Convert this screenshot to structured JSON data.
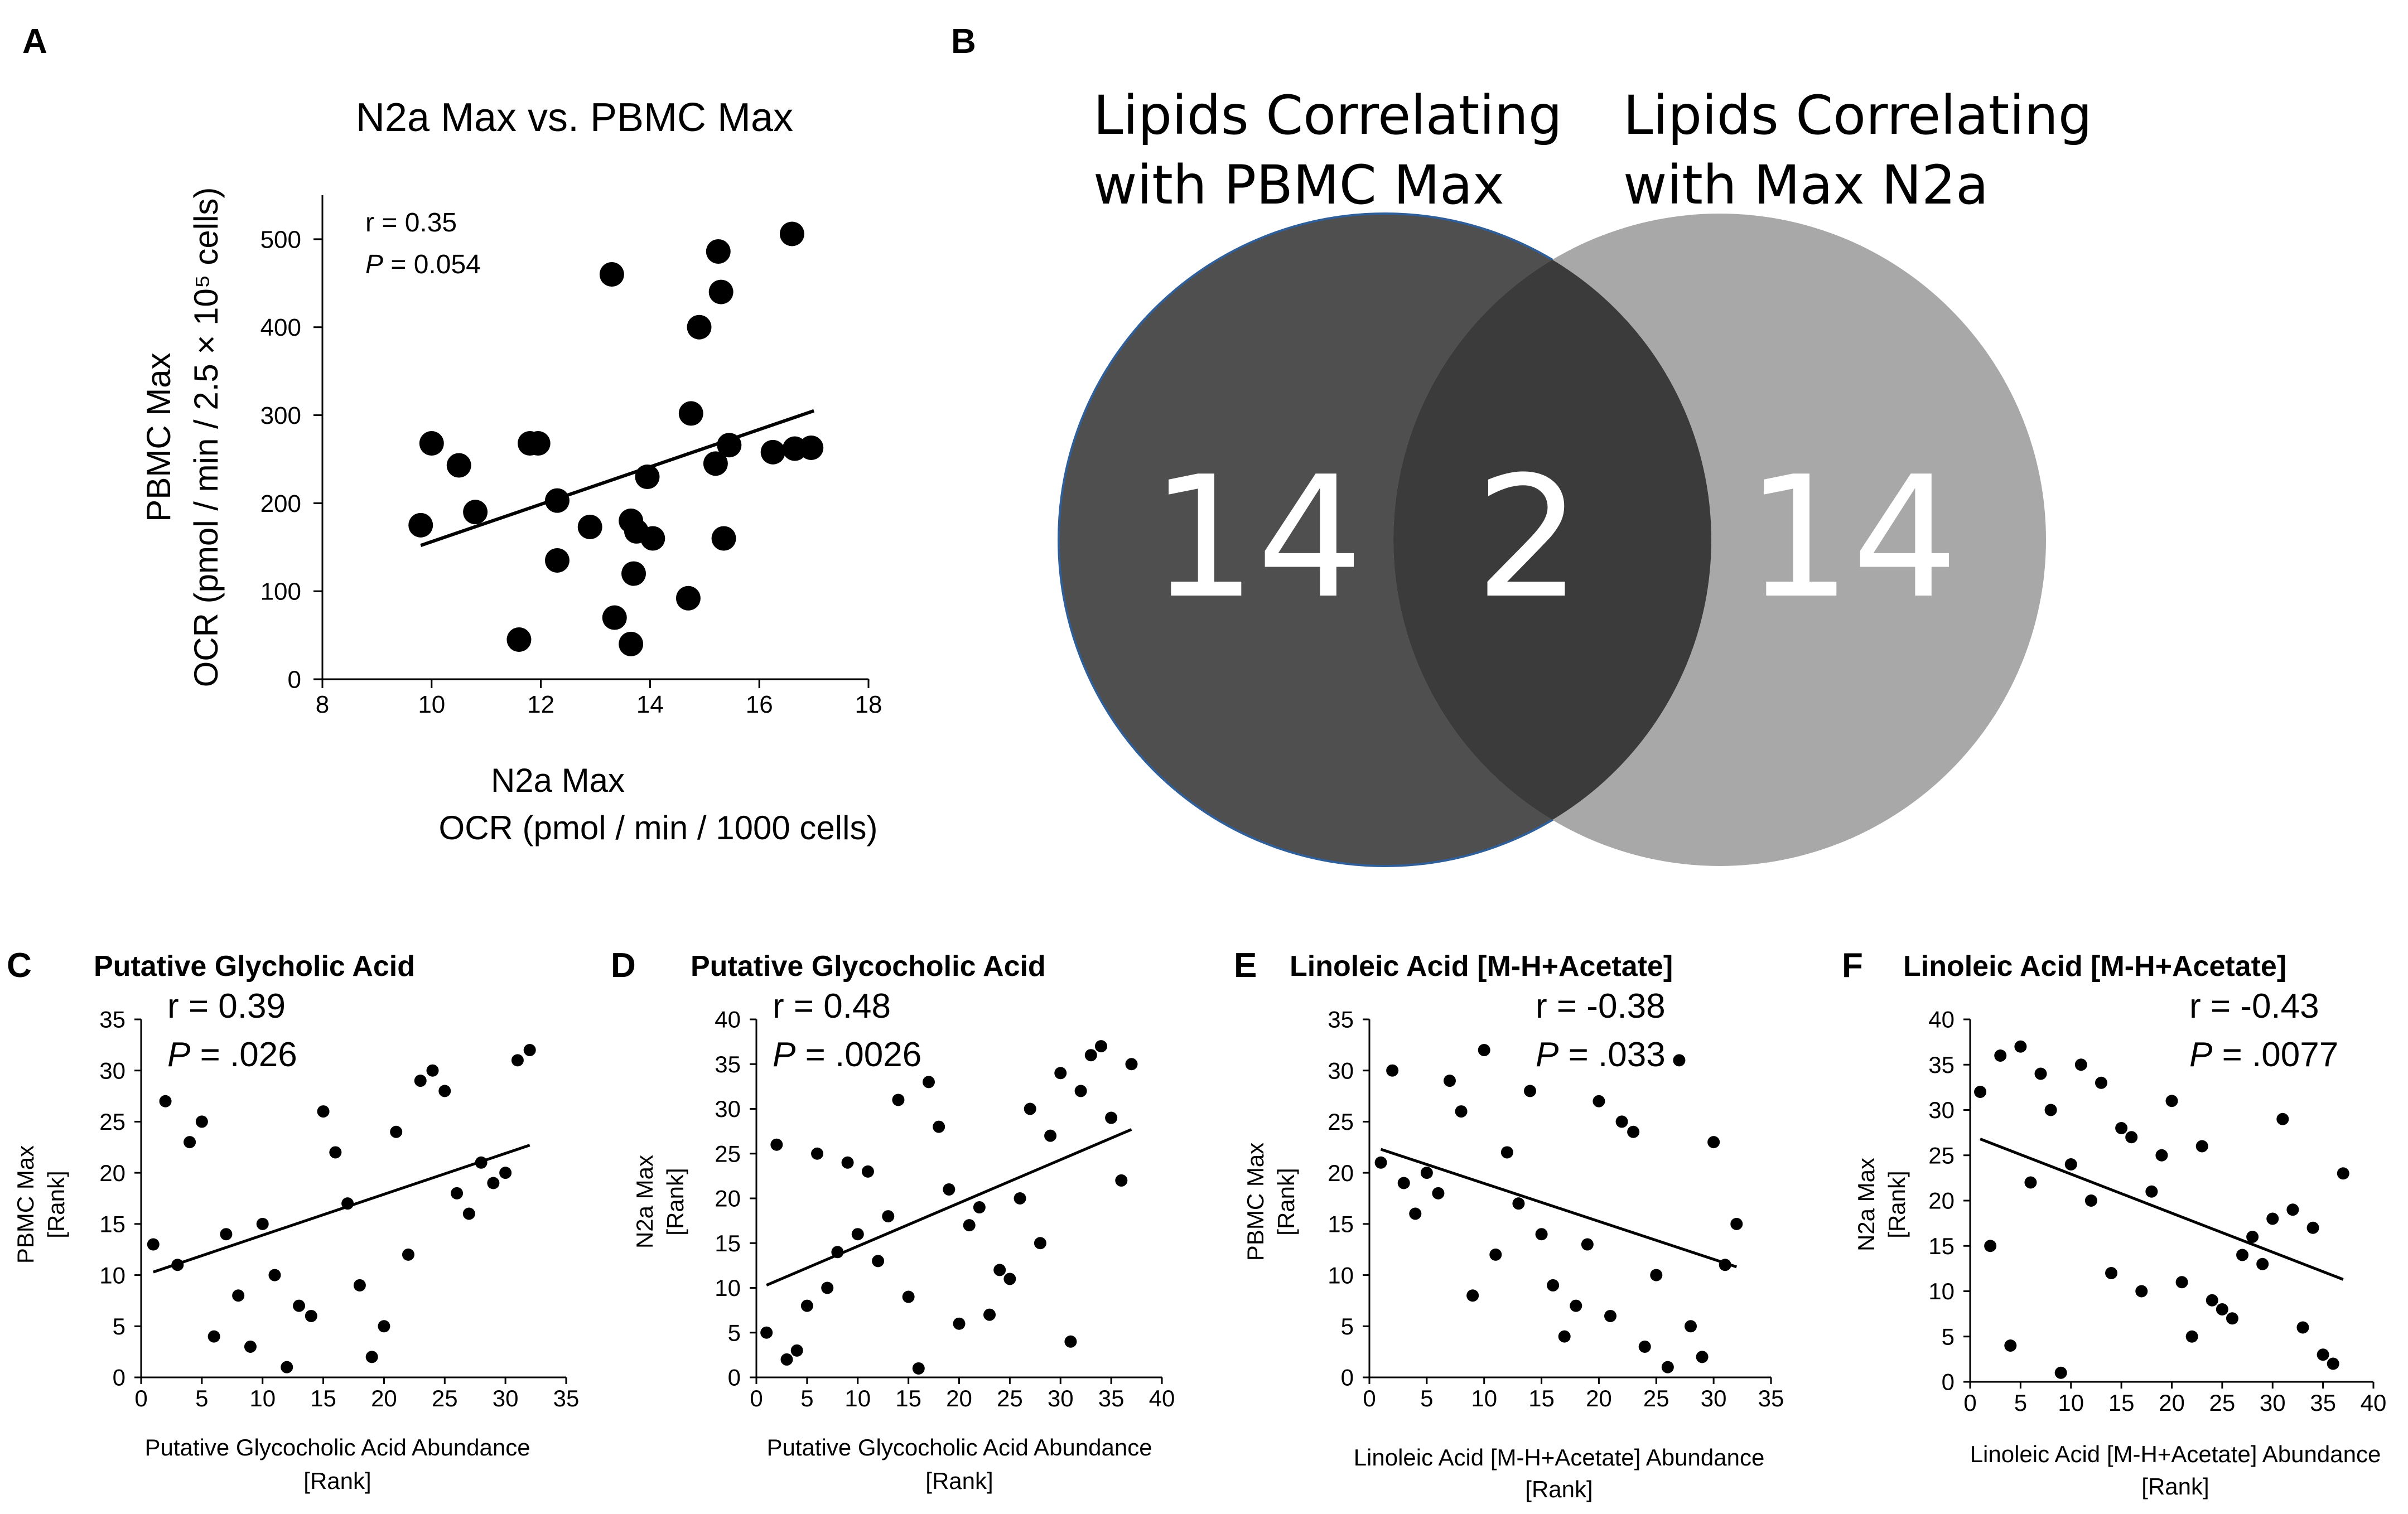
{
  "panel_labels": [
    "A",
    "B",
    "C",
    "D",
    "E",
    "F"
  ],
  "venn": {
    "left_title_line1": "Lipids Correlating",
    "left_title_line2": "with PBMC Max",
    "right_title_line1": "Lipids Correlating",
    "right_title_line2": "with Max N2a",
    "left_only": "14",
    "overlap": "2",
    "right_only": "14",
    "colors": {
      "left": "#4f4f4f",
      "right": "#a8a8a8",
      "overlap": "#3b3b3b",
      "left_edge": "#2f5f9a"
    }
  },
  "chart_data": [
    {
      "id": "A",
      "type": "scatter",
      "title": "N2a Max vs. PBMC Max",
      "xlabel": "N2a Max",
      "xlabel2": "OCR (pmol / min / 1000 cells)",
      "ylabel": "PBMC Max",
      "ylabel2": "OCR (pmol / min / 2.5 × 10⁵ cells)",
      "xlim": [
        8,
        18
      ],
      "ylim": [
        0,
        550
      ],
      "xticks": [
        8,
        10,
        12,
        14,
        16,
        18
      ],
      "yticks": [
        0,
        100,
        200,
        300,
        400,
        500
      ],
      "r_text": "r = 0.35",
      "p_label": "P",
      "p_text": " = 0.054",
      "trendline": [
        [
          9.8,
          152
        ],
        [
          17,
          305
        ]
      ],
      "points": [
        [
          9.8,
          175
        ],
        [
          10.0,
          268
        ],
        [
          10.5,
          243
        ],
        [
          10.8,
          190
        ],
        [
          11.6,
          45
        ],
        [
          11.8,
          268
        ],
        [
          11.95,
          268
        ],
        [
          12.3,
          203
        ],
        [
          12.3,
          135
        ],
        [
          12.9,
          173
        ],
        [
          13.3,
          460
        ],
        [
          13.35,
          70
        ],
        [
          13.65,
          40
        ],
        [
          13.65,
          180
        ],
        [
          13.7,
          120
        ],
        [
          13.75,
          168
        ],
        [
          13.95,
          230
        ],
        [
          14.05,
          160
        ],
        [
          14.7,
          92
        ],
        [
          14.75,
          302
        ],
        [
          14.9,
          400
        ],
        [
          15.2,
          245
        ],
        [
          15.25,
          486
        ],
        [
          15.3,
          440
        ],
        [
          15.35,
          160
        ],
        [
          15.45,
          266
        ],
        [
          16.25,
          258
        ],
        [
          16.6,
          506
        ],
        [
          16.65,
          262
        ],
        [
          16.95,
          263
        ]
      ]
    },
    {
      "id": "C",
      "type": "scatter",
      "title": "Putative Glycholic Acid",
      "xlabel": "Putative Glycocholic Acid Abundance",
      "xlabel2": "[Rank]",
      "ylabel": "PBMC Max",
      "ylabel2": "[Rank]",
      "xlim": [
        0,
        35
      ],
      "ylim": [
        0,
        35
      ],
      "xticks": [
        0,
        5,
        10,
        15,
        20,
        25,
        30,
        35
      ],
      "yticks": [
        0,
        5,
        10,
        15,
        20,
        25,
        30,
        35
      ],
      "r_text": "r = 0.39",
      "p_label": "P",
      "p_text": " = .026",
      "trendline": [
        [
          1,
          10.3
        ],
        [
          32,
          22.7
        ]
      ],
      "points": [
        [
          1,
          13
        ],
        [
          2,
          27
        ],
        [
          3,
          11
        ],
        [
          4,
          23
        ],
        [
          5,
          25
        ],
        [
          6,
          4
        ],
        [
          7,
          14
        ],
        [
          8,
          8
        ],
        [
          9,
          3
        ],
        [
          10,
          15
        ],
        [
          11,
          10
        ],
        [
          12,
          1
        ],
        [
          13,
          7
        ],
        [
          14,
          6
        ],
        [
          15,
          26
        ],
        [
          16,
          22
        ],
        [
          17,
          17
        ],
        [
          18,
          9
        ],
        [
          19,
          2
        ],
        [
          20,
          5
        ],
        [
          21,
          24
        ],
        [
          22,
          12
        ],
        [
          23,
          29
        ],
        [
          24,
          30
        ],
        [
          25,
          28
        ],
        [
          26,
          18
        ],
        [
          27,
          16
        ],
        [
          28,
          21
        ],
        [
          29,
          19
        ],
        [
          30,
          20
        ],
        [
          31,
          31
        ],
        [
          32,
          32
        ]
      ]
    },
    {
      "id": "D",
      "type": "scatter",
      "title": "Putative Glycocholic Acid",
      "xlabel": "Putative Glycocholic Acid Abundance",
      "xlabel2": "[Rank]",
      "ylabel": "N2a  Max",
      "ylabel2": "[Rank]",
      "xlim": [
        0,
        40
      ],
      "ylim": [
        0,
        40
      ],
      "xticks": [
        0,
        5,
        10,
        15,
        20,
        25,
        30,
        35,
        40
      ],
      "yticks": [
        0,
        5,
        10,
        15,
        20,
        25,
        30,
        35,
        40
      ],
      "r_text": "r = 0.48",
      "p_label": "P",
      "p_text": " = .0026",
      "trendline": [
        [
          1,
          10.3
        ],
        [
          37,
          27.7
        ]
      ],
      "points": [
        [
          1,
          5
        ],
        [
          2,
          26
        ],
        [
          3,
          2
        ],
        [
          4,
          3
        ],
        [
          5,
          8
        ],
        [
          6,
          25
        ],
        [
          7,
          10
        ],
        [
          8,
          14
        ],
        [
          9,
          24
        ],
        [
          10,
          16
        ],
        [
          11,
          23
        ],
        [
          12,
          13
        ],
        [
          13,
          18
        ],
        [
          14,
          31
        ],
        [
          15,
          9
        ],
        [
          16,
          1
        ],
        [
          17,
          33
        ],
        [
          18,
          28
        ],
        [
          19,
          21
        ],
        [
          20,
          6
        ],
        [
          21,
          17
        ],
        [
          22,
          19
        ],
        [
          23,
          7
        ],
        [
          24,
          12
        ],
        [
          25,
          11
        ],
        [
          26,
          20
        ],
        [
          27,
          30
        ],
        [
          28,
          15
        ],
        [
          29,
          27
        ],
        [
          30,
          34
        ],
        [
          31,
          4
        ],
        [
          32,
          32
        ],
        [
          33,
          36
        ],
        [
          34,
          37
        ],
        [
          35,
          29
        ],
        [
          36,
          22
        ],
        [
          37,
          35
        ]
      ]
    },
    {
      "id": "E",
      "type": "scatter",
      "title": "Linoleic Acid [M-H+Acetate]",
      "xlabel": "Linoleic Acid [M-H+Acetate] Abundance",
      "xlabel2": "[Rank]",
      "ylabel": "PBMC Max",
      "ylabel2": "[Rank]",
      "xlim": [
        0,
        35
      ],
      "ylim": [
        0,
        35
      ],
      "xticks": [
        0,
        5,
        10,
        15,
        20,
        25,
        30,
        35
      ],
      "yticks": [
        0,
        5,
        10,
        15,
        20,
        25,
        30,
        35
      ],
      "r_text": "r = -0.38",
      "p_label": "P",
      "p_text": " = .033",
      "trendline": [
        [
          1,
          22.3
        ],
        [
          32,
          10.8
        ]
      ],
      "points": [
        [
          1,
          21
        ],
        [
          2,
          30
        ],
        [
          3,
          19
        ],
        [
          4,
          16
        ],
        [
          5,
          20
        ],
        [
          6,
          18
        ],
        [
          7,
          29
        ],
        [
          8,
          26
        ],
        [
          9,
          8
        ],
        [
          10,
          32
        ],
        [
          11,
          12
        ],
        [
          12,
          22
        ],
        [
          13,
          17
        ],
        [
          14,
          28
        ],
        [
          15,
          14
        ],
        [
          16,
          9
        ],
        [
          17,
          4
        ],
        [
          18,
          7
        ],
        [
          19,
          13
        ],
        [
          20,
          27
        ],
        [
          21,
          6
        ],
        [
          22,
          25
        ],
        [
          23,
          24
        ],
        [
          24,
          3
        ],
        [
          25,
          10
        ],
        [
          26,
          1
        ],
        [
          27,
          31
        ],
        [
          28,
          5
        ],
        [
          29,
          2
        ],
        [
          30,
          23
        ],
        [
          31,
          11
        ],
        [
          32,
          15
        ]
      ]
    },
    {
      "id": "F",
      "type": "scatter",
      "title": "Linoleic Acid [M-H+Acetate]",
      "xlabel": "Linoleic Acid [M-H+Acetate] Abundance",
      "xlabel2": "[Rank]",
      "ylabel": "N2a Max",
      "ylabel2": "[Rank]",
      "xlim": [
        0,
        40
      ],
      "ylim": [
        0,
        40
      ],
      "xticks": [
        0,
        5,
        10,
        15,
        20,
        25,
        30,
        35,
        40
      ],
      "yticks": [
        0,
        5,
        10,
        15,
        20,
        25,
        30,
        35,
        40
      ],
      "r_text": "r = -0.43",
      "p_label": "P",
      "p_text": " = .0077",
      "trendline": [
        [
          1,
          26.8
        ],
        [
          37,
          11.3
        ]
      ],
      "points": [
        [
          1,
          32
        ],
        [
          2,
          15
        ],
        [
          3,
          36
        ],
        [
          4,
          4
        ],
        [
          5,
          37
        ],
        [
          6,
          22
        ],
        [
          7,
          34
        ],
        [
          8,
          30
        ],
        [
          9,
          1
        ],
        [
          10,
          24
        ],
        [
          11,
          35
        ],
        [
          12,
          20
        ],
        [
          13,
          33
        ],
        [
          14,
          12
        ],
        [
          15,
          28
        ],
        [
          16,
          27
        ],
        [
          17,
          10
        ],
        [
          18,
          21
        ],
        [
          19,
          25
        ],
        [
          20,
          31
        ],
        [
          21,
          11
        ],
        [
          22,
          5
        ],
        [
          23,
          26
        ],
        [
          24,
          9
        ],
        [
          25,
          8
        ],
        [
          26,
          7
        ],
        [
          27,
          14
        ],
        [
          28,
          16
        ],
        [
          29,
          13
        ],
        [
          30,
          18
        ],
        [
          31,
          29
        ],
        [
          32,
          19
        ],
        [
          33,
          6
        ],
        [
          34,
          17
        ],
        [
          35,
          3
        ],
        [
          36,
          2
        ],
        [
          37,
          23
        ]
      ]
    }
  ]
}
